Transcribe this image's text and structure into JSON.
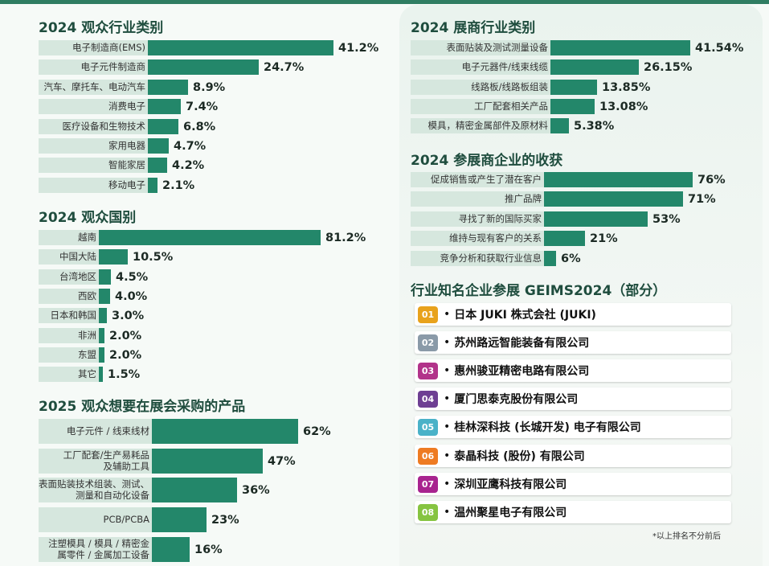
{
  "chart_data": [
    {
      "type": "bar",
      "title": "2024 观众行业类别",
      "categories": [
        "电子制造商(EMS)",
        "电子元件制造商",
        "汽车、摩托车、电动汽车",
        "消费电子",
        "医疗设备和生物技术",
        "家用电器",
        "智能家居",
        "移动电子"
      ],
      "values": [
        41.2,
        24.7,
        8.9,
        7.4,
        6.8,
        4.7,
        4.2,
        2.1
      ],
      "value_labels": [
        "41.2%",
        "24.7%",
        "8.9%",
        "7.4%",
        "6.8%",
        "4.7%",
        "4.2%",
        "2.1%"
      ]
    },
    {
      "type": "bar",
      "title": "2024 观众国别",
      "categories": [
        "越南",
        "中国大陆",
        "台湾地区",
        "西欧",
        "日本和韩国",
        "非洲",
        "东盟",
        "其它"
      ],
      "values": [
        81.2,
        10.5,
        4.5,
        4.0,
        3.0,
        2.0,
        2.0,
        1.5
      ],
      "value_labels": [
        "81.2%",
        "10.5%",
        "4.5%",
        "4.0%",
        "3.0%",
        "2.0%",
        "2.0%",
        "1.5%"
      ]
    },
    {
      "type": "bar",
      "title": "2025 观众想要在展会采购的产品",
      "categories": [
        "电子元件 / 线束线材",
        "工厂配套/生产易耗品\n及辅助工具",
        "表面贴装技术组装、测试、\n测量和自动化设备",
        "PCB/PCBA",
        "注塑模具 / 模具 / 精密金\n属零件 / 金属加工设备"
      ],
      "values": [
        62,
        47,
        36,
        23,
        16
      ],
      "value_labels": [
        "62%",
        "47%",
        "36%",
        "23%",
        "16%"
      ]
    },
    {
      "type": "bar",
      "title": "2024 展商行业类别",
      "categories": [
        "表面贴装及测试测量设备",
        "电子元器件/线束线缆",
        "线路板/线路板组装",
        "工厂配套相关产品",
        "模具，精密金属部件及原材料"
      ],
      "values": [
        41.54,
        26.15,
        13.85,
        13.08,
        5.38
      ],
      "value_labels": [
        "41.54%",
        "26.15%",
        "13.85%",
        "13.08%",
        "5.38%"
      ]
    },
    {
      "type": "bar",
      "title": "2024 参展商企业的收获",
      "categories": [
        "促成销售或产生了潜在客户",
        "推广品牌",
        "寻找了新的国际买家",
        "维持与现有客户的关系",
        "竞争分析和获取行业信息"
      ],
      "values": [
        76,
        71,
        53,
        21,
        6
      ],
      "value_labels": [
        "76%",
        "71%",
        "53%",
        "21%",
        "6%"
      ]
    }
  ],
  "companies": {
    "title": "行业知名企业参展 GEIMS2024（部分）",
    "bullet": "•",
    "items": [
      {
        "num": "01",
        "name": "日本 JUKI 株式会社 (JUKI)",
        "color": "#e8a21c"
      },
      {
        "num": "02",
        "name": "苏州路远智能装备有限公司",
        "color": "#8a9aa8"
      },
      {
        "num": "03",
        "name": "惠州骏亚精密电路有限公司",
        "color": "#b2338a"
      },
      {
        "num": "04",
        "name": "厦门思泰克股份有限公司",
        "color": "#6e3f93"
      },
      {
        "num": "05",
        "name": "桂林深科技 (长城开发) 电子有限公司",
        "color": "#4ab2c8"
      },
      {
        "num": "06",
        "name": "泰晶科技 (股份) 有限公司",
        "color": "#ee7b22"
      },
      {
        "num": "07",
        "name": "深圳亚鹰科技有限公司",
        "color": "#a8248f"
      },
      {
        "num": "08",
        "name": "温州聚星电子有限公司",
        "color": "#86c441"
      }
    ],
    "footnote": "*以上排名不分前后"
  },
  "colors": {
    "bar": "#23876a",
    "label_bg": "#d6e7de",
    "title": "#1f4d3e"
  }
}
